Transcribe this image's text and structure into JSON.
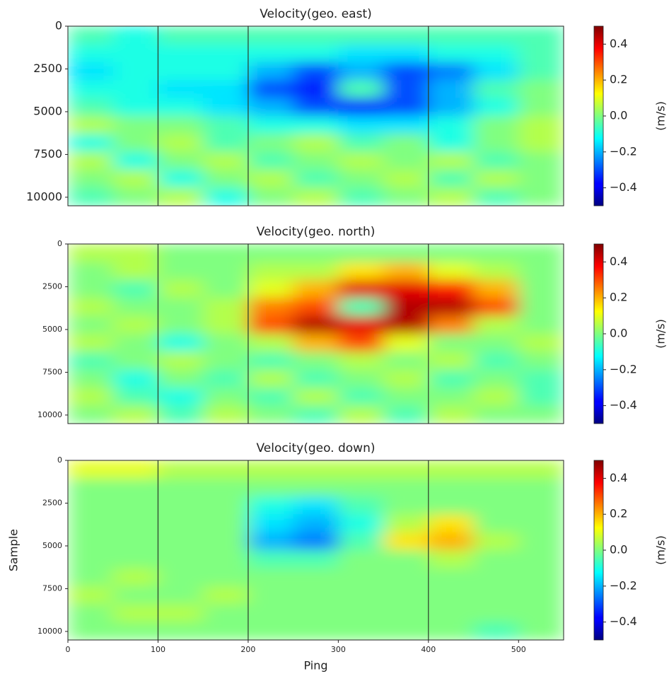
{
  "chart_data": [
    {
      "type": "heatmap",
      "title": "Velocity(geo. east)",
      "colormap": "jet",
      "xbins": [
        0,
        50,
        100,
        150,
        200,
        250,
        300,
        350,
        400,
        450,
        500,
        550
      ],
      "ybins": [
        0,
        1050,
        2100,
        3150,
        4200,
        5250,
        6300,
        7350,
        8400,
        9450,
        10500
      ],
      "values": [
        [
          -0.05,
          -0.1,
          -0.05,
          -0.05,
          -0.05,
          -0.05,
          -0.05,
          -0.05,
          -0.05,
          -0.05,
          -0.05
        ],
        [
          -0.1,
          -0.1,
          -0.1,
          -0.1,
          -0.1,
          -0.1,
          -0.15,
          -0.15,
          -0.1,
          -0.1,
          -0.05
        ],
        [
          -0.15,
          -0.1,
          -0.1,
          -0.1,
          -0.2,
          -0.3,
          -0.2,
          -0.3,
          -0.25,
          -0.15,
          -0.05
        ],
        [
          -0.1,
          -0.1,
          -0.15,
          -0.15,
          -0.3,
          -0.35,
          -0.05,
          -0.3,
          -0.2,
          -0.05,
          0
        ],
        [
          -0.05,
          -0.1,
          -0.1,
          -0.15,
          -0.2,
          -0.3,
          -0.35,
          -0.3,
          -0.2,
          -0.1,
          0
        ],
        [
          0.05,
          0,
          0,
          -0.05,
          -0.1,
          -0.1,
          -0.15,
          -0.15,
          -0.1,
          0,
          0.05
        ],
        [
          -0.1,
          0,
          0.05,
          -0.05,
          0,
          0.05,
          -0.05,
          0,
          -0.1,
          0,
          0.05
        ],
        [
          0.05,
          -0.1,
          0,
          0.05,
          -0.05,
          0,
          0.05,
          0,
          0.05,
          -0.05,
          0
        ],
        [
          0,
          0.05,
          -0.1,
          0,
          0.05,
          -0.05,
          0,
          0.05,
          -0.05,
          0.05,
          0
        ],
        [
          -0.05,
          0,
          0.05,
          -0.1,
          0,
          0.05,
          -0.05,
          0,
          0.05,
          -0.05,
          0
        ]
      ],
      "xlim": [
        0,
        550
      ],
      "ylim": [
        0,
        10500
      ],
      "y_inverted": true,
      "yticks": [
        0,
        2500,
        5000,
        7500,
        10000
      ],
      "vlines": [
        100,
        200,
        400
      ],
      "zlim": [
        -0.5,
        0.5
      ],
      "zticks": [
        0.4,
        0.2,
        {
          "value": 0,
          "label": "0.0"
        },
        {
          "value": -0.2,
          "label": "−0.2"
        },
        {
          "value": -0.4,
          "label": "−0.4"
        }
      ],
      "zlabel": "(m/s)"
    },
    {
      "type": "heatmap",
      "title": "Velocity(geo. north)",
      "colormap": "jet",
      "xbins": [
        0,
        50,
        100,
        150,
        200,
        250,
        300,
        350,
        400,
        450,
        500,
        550
      ],
      "ybins": [
        0,
        1050,
        2100,
        3150,
        4200,
        5250,
        6300,
        7350,
        8400,
        9450,
        10500
      ],
      "values": [
        [
          0.05,
          0.05,
          0,
          0,
          0,
          0,
          0,
          0,
          0,
          0,
          0
        ],
        [
          0,
          0.05,
          0,
          0,
          0.05,
          0.05,
          0.15,
          0.2,
          0.1,
          0.05,
          0
        ],
        [
          0,
          -0.05,
          0.05,
          0,
          0.1,
          0.2,
          0.4,
          0.4,
          0.35,
          0.2,
          0
        ],
        [
          0.05,
          0,
          0,
          0.05,
          0.25,
          0.3,
          -0.05,
          0.45,
          0.45,
          0.3,
          0
        ],
        [
          0,
          0.05,
          0,
          0.05,
          0.3,
          0.45,
          0.4,
          0.45,
          0.25,
          0.05,
          0
        ],
        [
          0.05,
          0,
          -0.1,
          0,
          0.05,
          0.2,
          0.3,
          0.1,
          0,
          0,
          0.05
        ],
        [
          -0.05,
          0,
          0.05,
          0,
          -0.05,
          0,
          0.05,
          0,
          0.05,
          -0.05,
          0
        ],
        [
          0,
          -0.1,
          0,
          -0.05,
          0.05,
          -0.05,
          0,
          0.05,
          -0.05,
          0,
          -0.05
        ],
        [
          0.05,
          -0.05,
          -0.1,
          0,
          -0.05,
          0.05,
          -0.05,
          0,
          0,
          0.05,
          -0.05
        ],
        [
          0,
          0.05,
          -0.05,
          0.05,
          0,
          -0.05,
          0.05,
          -0.05,
          0.05,
          0,
          0
        ]
      ],
      "xlim": [
        0,
        550
      ],
      "ylim": [
        0,
        10500
      ],
      "y_inverted": true,
      "yticks": [
        0,
        2500,
        5000,
        7500,
        10000
      ],
      "vlines": [
        100,
        200,
        400
      ],
      "zlim": [
        -0.5,
        0.5
      ],
      "zticks": [
        0.4,
        0.2,
        {
          "value": 0,
          "label": "0.0"
        },
        {
          "value": -0.2,
          "label": "−0.2"
        },
        {
          "value": -0.4,
          "label": "−0.4"
        }
      ],
      "zlabel": "(m/s)"
    },
    {
      "type": "heatmap",
      "title": "Velocity(geo. down)",
      "colormap": "jet",
      "xlabel": "Ping",
      "ylabel": "Sample",
      "xbins": [
        0,
        50,
        100,
        150,
        200,
        250,
        300,
        350,
        400,
        450,
        500,
        550
      ],
      "ybins": [
        0,
        1050,
        2100,
        3150,
        4200,
        5250,
        6300,
        7350,
        8400,
        9450,
        10500
      ],
      "values": [
        [
          0.1,
          0.1,
          0.05,
          0.05,
          0.05,
          0.05,
          0.05,
          0.05,
          0.05,
          0.05,
          0.05
        ],
        [
          0,
          0,
          0,
          0,
          0,
          0,
          0,
          0,
          0,
          0,
          0
        ],
        [
          0,
          0,
          0,
          0,
          -0.1,
          -0.15,
          -0.05,
          0,
          0,
          0,
          0
        ],
        [
          0,
          0,
          0,
          0,
          -0.15,
          -0.2,
          -0.1,
          0.05,
          0.15,
          0,
          0
        ],
        [
          0,
          0,
          0,
          0,
          -0.2,
          -0.25,
          -0.05,
          0.15,
          0.2,
          0.05,
          0
        ],
        [
          0,
          0,
          0,
          0,
          -0.05,
          -0.05,
          0,
          0,
          0.05,
          0,
          0
        ],
        [
          0,
          0.05,
          0,
          0,
          0,
          0,
          0,
          0,
          0,
          0,
          0
        ],
        [
          0.05,
          0,
          0,
          0.05,
          0,
          0,
          0,
          0,
          0,
          0,
          0
        ],
        [
          0,
          0.05,
          0.05,
          0,
          0,
          0,
          0,
          0,
          0,
          0,
          0
        ],
        [
          0,
          0,
          0,
          0,
          0,
          0,
          0,
          0,
          0,
          -0.05,
          0
        ]
      ],
      "xlim": [
        0,
        550
      ],
      "ylim": [
        0,
        10500
      ],
      "y_inverted": true,
      "xticks": [
        0,
        100,
        200,
        300,
        400,
        500
      ],
      "yticks": [
        0,
        2500,
        5000,
        7500,
        10000
      ],
      "vlines": [
        100,
        200,
        400
      ],
      "zlim": [
        -0.5,
        0.5
      ],
      "zticks": [
        0.4,
        0.2,
        {
          "value": 0,
          "label": "0.0"
        },
        {
          "value": -0.2,
          "label": "−0.2"
        },
        {
          "value": -0.4,
          "label": "−0.4"
        }
      ],
      "zlabel": "(m/s)"
    }
  ]
}
